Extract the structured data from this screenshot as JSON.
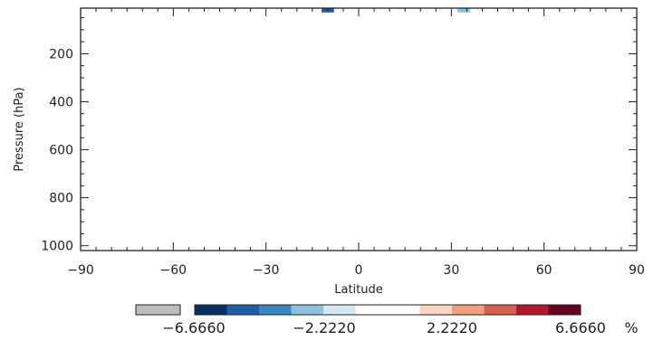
{
  "chart_data": {
    "type": "heatmap",
    "xlabel": "Latitude",
    "ylabel": "Pressure (hPa)",
    "xlim": [
      -90,
      90
    ],
    "ylim": [
      1020,
      10
    ],
    "x_ticks": [
      "−90",
      "−60",
      "−30",
      "0",
      "30",
      "60",
      "90"
    ],
    "x_tick_values": [
      -90,
      -60,
      -30,
      0,
      30,
      60,
      90
    ],
    "y_ticks": [
      "200",
      "400",
      "600",
      "800",
      "1000"
    ],
    "y_tick_values": [
      200,
      400,
      600,
      800,
      1000
    ],
    "cells": [
      {
        "lat_min": -12,
        "lat_max": -8,
        "p_top": 10,
        "p_bottom": 28,
        "value": -5.9,
        "color": "#1c5ea6"
      },
      {
        "lat_min": 32,
        "lat_max": 36,
        "p_top": 10,
        "p_bottom": 28,
        "value": -1.5,
        "color": "#8ec2dc"
      }
    ],
    "colorbar": {
      "missing_color": "#bdbdbd",
      "colors": [
        "#072f62",
        "#1c5ea6",
        "#3a87bf",
        "#8ec2dc",
        "#d3e6f1",
        "#ffffff",
        "#ffffff",
        "#fbd5c0",
        "#f1a07e",
        "#d45f4c",
        "#b1182b",
        "#66001f"
      ],
      "tick_labels": [
        "−6.6660",
        "−2.2220",
        "2.2220",
        "6.6660"
      ],
      "unit": "%"
    }
  }
}
